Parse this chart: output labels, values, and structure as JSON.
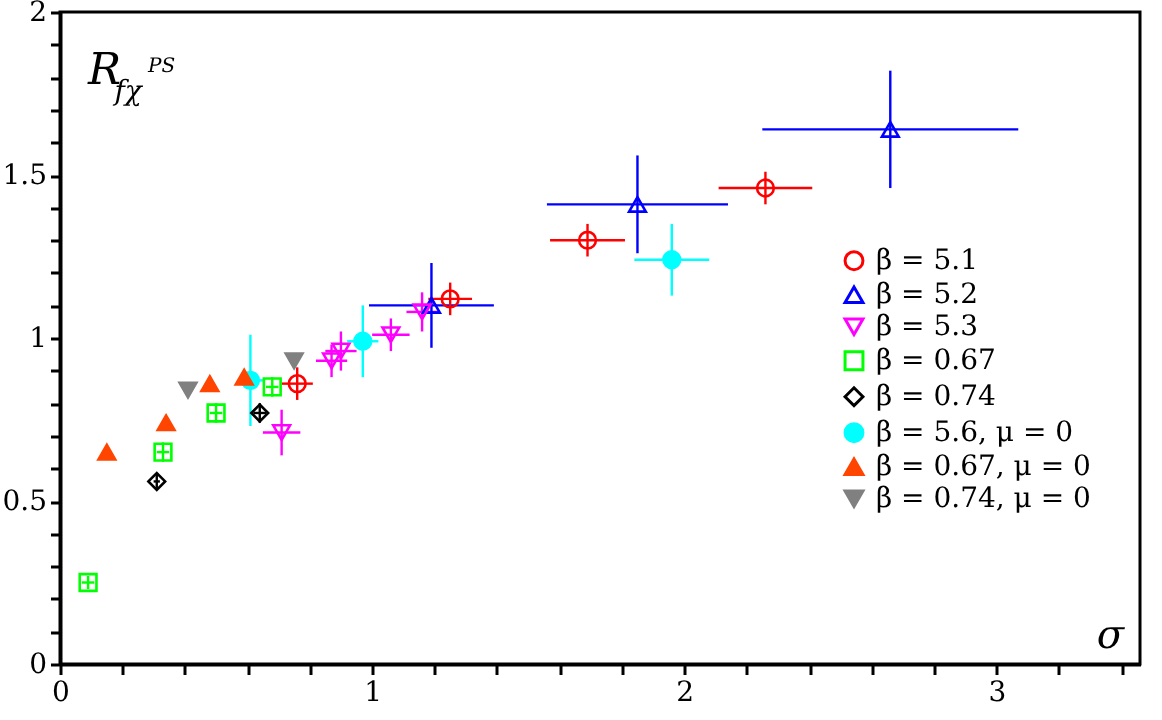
{
  "chart_data": {
    "type": "scatter",
    "xlabel": "σ",
    "ylabel": "R$_{fχ}$$^{PS}$",
    "xlim": [
      0,
      3.46
    ],
    "ylim": [
      0,
      2
    ],
    "xticks": [
      0,
      {
        "value": 0.2,
        "label": null
      },
      {
        "value": 0.4,
        "label": null
      },
      {
        "value": 0.6,
        "label": null
      },
      {
        "value": 0.8,
        "label": null
      },
      1,
      {
        "value": 1.2,
        "label": null
      },
      {
        "value": 1.4,
        "label": null
      },
      {
        "value": 1.6,
        "label": null
      },
      {
        "value": 1.8,
        "label": null
      },
      2,
      {
        "value": 2.2,
        "label": null
      },
      {
        "value": 2.4,
        "label": null
      },
      {
        "value": 2.6,
        "label": null
      },
      {
        "value": 2.8,
        "label": null
      },
      3,
      {
        "value": 3.2,
        "label": null
      },
      {
        "value": 3.4,
        "label": null
      }
    ],
    "yticks": [
      0,
      {
        "value": 0.1,
        "label": null
      },
      {
        "value": 0.2,
        "label": null
      },
      {
        "value": 0.3,
        "label": null
      },
      {
        "value": 0.4,
        "label": null
      },
      0.5,
      {
        "value": 0.6,
        "label": null
      },
      {
        "value": 0.7,
        "label": null
      },
      {
        "value": 0.8,
        "label": null
      },
      {
        "value": 0.9,
        "label": null
      },
      1,
      {
        "value": 1.1,
        "label": null
      },
      {
        "value": 1.2,
        "label": null
      },
      {
        "value": 1.3,
        "label": null
      },
      {
        "value": 1.4,
        "label": null
      },
      1.5,
      {
        "value": 1.6,
        "label": null
      },
      {
        "value": 1.7,
        "label": null
      },
      {
        "value": 1.8,
        "label": null
      },
      {
        "value": 1.9,
        "label": null
      },
      2
    ],
    "grid": false,
    "legend": "right",
    "series": [
      {
        "name": "β = 5.1",
        "color": "#ff0000",
        "marker": "circle",
        "x": [
          0.76,
          1.25,
          1.69,
          2.26
        ],
        "values": [
          0.86,
          1.12,
          1.3,
          1.46
        ],
        "xerrors": [
          0.05,
          0.07,
          0.12,
          0.15
        ],
        "errors": [
          0.05,
          0.05,
          0.05,
          0.05
        ]
      },
      {
        "name": "β = 5.2",
        "color": "#0000ff",
        "marker": "triangle",
        "x": [
          1.19,
          1.85,
          2.66
        ],
        "values": [
          1.1,
          1.41,
          1.64
        ],
        "xerrors": [
          0.2,
          0.29,
          0.41
        ],
        "errors": [
          0.13,
          0.15,
          0.18
        ]
      },
      {
        "name": "β = 5.3",
        "color": "#ff00ff",
        "marker": "triangle-down",
        "x": [
          0.71,
          0.87,
          0.9,
          1.06,
          1.16
        ],
        "values": [
          0.71,
          0.93,
          0.96,
          1.01,
          1.08
        ],
        "xerrors": [
          0.06,
          0.05,
          0.05,
          0.06,
          0.05
        ],
        "errors": [
          0.07,
          0.05,
          0.06,
          0.05,
          0.06
        ]
      },
      {
        "name": "β = 0.67",
        "color": "#00ff00",
        "marker": "square",
        "x": [
          0.09,
          0.33,
          0.5,
          0.68
        ],
        "values": [
          0.25,
          0.65,
          0.77,
          0.85
        ],
        "xerrors": [
          0.02,
          0.02,
          0.02,
          0.02
        ],
        "errors": [
          0.02,
          0.03,
          0.03,
          0.03
        ]
      },
      {
        "name": "β = 0.74",
        "color": "#000000",
        "marker": "diamond",
        "x": [
          0.31,
          0.64
        ],
        "values": [
          0.56,
          0.77
        ],
        "xerrors": [
          0.01,
          0.02
        ],
        "errors": [
          0.02,
          0.03
        ]
      },
      {
        "name": "β = 5.6, μ = 0",
        "color": "#00ffff",
        "marker": "circle-filled",
        "x": [
          0.61,
          0.97,
          1.96
        ],
        "values": [
          0.87,
          0.99,
          1.24
        ],
        "xerrors": [
          0.04,
          0.05,
          0.12
        ],
        "errors": [
          0.14,
          0.11,
          0.11
        ]
      },
      {
        "name": "β = 0.67, μ = 0",
        "color": "#ff4500",
        "marker": "triangle-filled",
        "x": [
          0.15,
          0.34,
          0.48,
          0.59
        ],
        "values": [
          0.65,
          0.74,
          0.86,
          0.88
        ],
        "xerrors": [
          0.01,
          0.01,
          0.01,
          0.01
        ],
        "errors": [
          0.02,
          0.02,
          0.02,
          0.02
        ]
      },
      {
        "name": "β = 0.74, μ = 0",
        "color": "#808080",
        "marker": "triangle-down-filled",
        "x": [
          0.41,
          0.75
        ],
        "values": [
          0.84,
          0.93
        ],
        "xerrors": [
          0.01,
          0.01
        ],
        "errors": [
          0.02,
          0.02
        ]
      }
    ]
  }
}
